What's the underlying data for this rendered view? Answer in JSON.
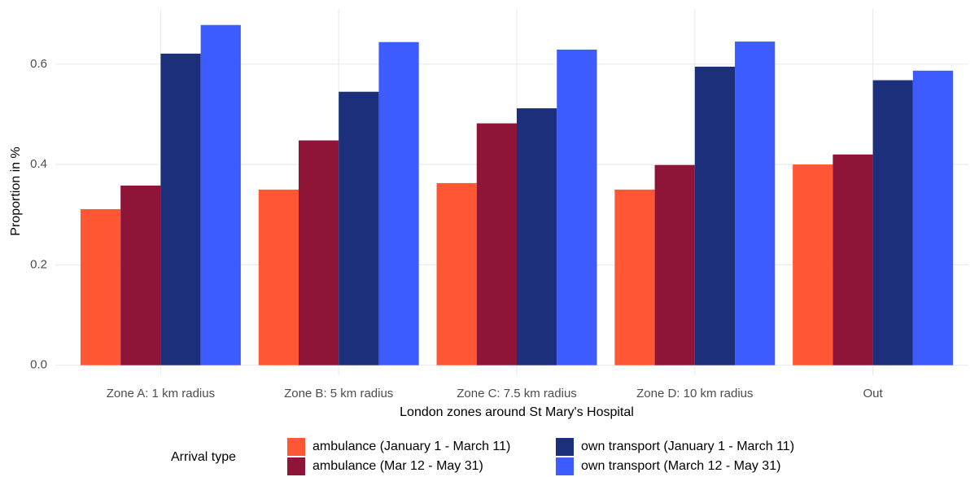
{
  "chart_data": {
    "type": "bar",
    "x_label": "London zones around St Mary's Hospital",
    "y_label": "Proportion in %",
    "categories": [
      "Zone A: 1 km radius",
      "Zone B: 5 km radius",
      "Zone C: 7.5 km radius",
      "Zone D: 10 km radius",
      "Out"
    ],
    "series": [
      {
        "name": "ambulance (January 1 - March 11)",
        "color": "#ff5733",
        "values": [
          0.311,
          0.35,
          0.363,
          0.35,
          0.4
        ]
      },
      {
        "name": "ambulance (Mar 12 - May 31)",
        "color": "#8e1538",
        "values": [
          0.358,
          0.448,
          0.482,
          0.399,
          0.42
        ]
      },
      {
        "name": "own transport (January 1 - March 11)",
        "color": "#1c2f7a",
        "values": [
          0.621,
          0.545,
          0.512,
          0.595,
          0.568
        ]
      },
      {
        "name": "own transport (March 12 - May 31)",
        "color": "#3d5cff",
        "values": [
          0.678,
          0.644,
          0.629,
          0.645,
          0.587
        ]
      }
    ],
    "legend_title": "Arrival type",
    "legend_position": "bottom",
    "ylim": [
      -0.02,
      0.71
    ],
    "yticks": [
      {
        "value": 0,
        "label": "0.0"
      },
      0.2,
      0.4,
      0.6
    ],
    "grid": true
  }
}
